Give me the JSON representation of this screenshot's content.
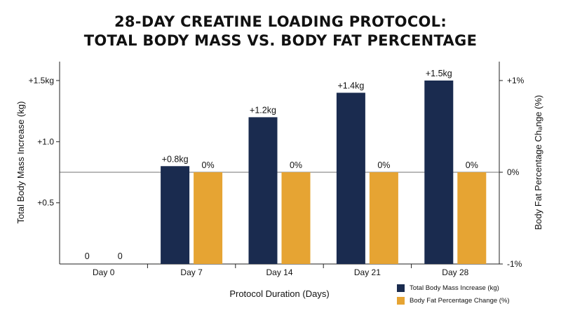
{
  "chart_data": {
    "type": "bar",
    "title_lines": [
      "28-DAY CREATINE LOADING PROTOCOL:",
      "TOTAL BODY MASS VS. BODY FAT PERCENTAGE"
    ],
    "xlabel": "Protocol Duration (Days)",
    "ylabel_left": "Total Body Mass Increase (kg)",
    "ylabel_right": "Body Fat Percentage Chₐnge (%)",
    "categories": [
      "Day 0",
      "Day 7",
      "Day 14",
      "Day 21",
      "Day 28"
    ],
    "ylim_left": [
      0,
      1.5
    ],
    "yticks_left": [
      {
        "value": 0.5,
        "label": "+0.5"
      },
      {
        "value": 1.0,
        "label": "+1.0"
      },
      {
        "value": 1.5,
        "label": "+1.5kg"
      }
    ],
    "ylim_right": [
      -1,
      1
    ],
    "yticks_right": [
      {
        "value": 1,
        "label": "+1%"
      },
      {
        "value": 0,
        "label": "0%"
      },
      {
        "value": -1,
        "label": "-1%"
      }
    ],
    "series": [
      {
        "name": "Total Body Mass Increase (kg)",
        "axis": "left",
        "color": "#1a2b4f",
        "values": [
          0,
          0.8,
          1.2,
          1.4,
          1.5
        ],
        "labels": [
          "0",
          "+0.8kg",
          "+1.2kg",
          "+1.4kg",
          "+1.5kg"
        ]
      },
      {
        "name": "Body Fat Percentage Change (%)",
        "axis": "right",
        "color": "#e6a433",
        "values": [
          0,
          0,
          0,
          0,
          0
        ],
        "labels": [
          "0",
          "0%",
          "0%",
          "0%",
          "0%"
        ]
      }
    ],
    "reference_line": {
      "axis": "right",
      "value": 0
    },
    "legend_position": "bottom-right"
  }
}
